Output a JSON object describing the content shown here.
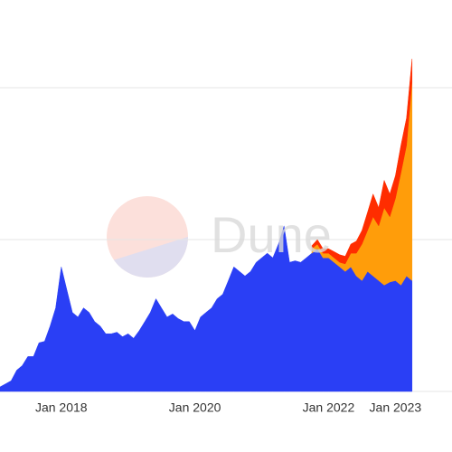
{
  "chart_data": {
    "type": "stacked-area",
    "watermark": "Dune",
    "x": [
      "2017-02",
      "2017-03",
      "2017-04",
      "2017-05",
      "2017-06",
      "2017-07",
      "2017-08",
      "2017-09",
      "2017-10",
      "2017-11",
      "2017-12",
      "2018-01",
      "2018-02",
      "2018-03",
      "2018-04",
      "2018-05",
      "2018-06",
      "2018-07",
      "2018-08",
      "2018-09",
      "2018-10",
      "2018-11",
      "2018-12",
      "2019-01",
      "2019-02",
      "2019-03",
      "2019-04",
      "2019-05",
      "2019-06",
      "2019-07",
      "2019-08",
      "2019-09",
      "2019-10",
      "2019-11",
      "2019-12",
      "2020-01",
      "2020-02",
      "2020-03",
      "2020-04",
      "2020-05",
      "2020-06",
      "2020-07",
      "2020-08",
      "2020-09",
      "2020-10",
      "2020-11",
      "2020-12",
      "2021-01",
      "2021-02",
      "2021-03",
      "2021-04",
      "2021-05",
      "2021-06",
      "2021-07",
      "2021-08",
      "2021-09",
      "2021-10",
      "2021-11",
      "2021-12",
      "2022-01",
      "2022-02",
      "2022-03",
      "2022-04",
      "2022-05",
      "2022-06",
      "2022-07",
      "2022-08",
      "2022-09",
      "2022-10",
      "2022-11",
      "2022-12",
      "2023-01",
      "2023-02",
      "2023-03",
      "2023-04"
    ],
    "series": [
      {
        "color": "#2a3ff5",
        "values": [
          0.03,
          0.05,
          0.07,
          0.14,
          0.17,
          0.23,
          0.23,
          0.32,
          0.33,
          0.43,
          0.55,
          0.82,
          0.67,
          0.52,
          0.49,
          0.55,
          0.52,
          0.46,
          0.43,
          0.38,
          0.38,
          0.39,
          0.36,
          0.38,
          0.35,
          0.4,
          0.46,
          0.52,
          0.61,
          0.55,
          0.49,
          0.51,
          0.48,
          0.46,
          0.46,
          0.4,
          0.49,
          0.52,
          0.55,
          0.61,
          0.64,
          0.73,
          0.82,
          0.79,
          0.76,
          0.79,
          0.85,
          0.88,
          0.91,
          0.88,
          0.97,
          1.09,
          0.85,
          0.86,
          0.85,
          0.88,
          0.91,
          0.94,
          0.88,
          0.88,
          0.85,
          0.82,
          0.79,
          0.82,
          0.76,
          0.73,
          0.79,
          0.76,
          0.73,
          0.7,
          0.72,
          0.73,
          0.7,
          0.76,
          0.73
        ]
      },
      {
        "color": "#ff9d0a",
        "values": [
          null,
          null,
          null,
          null,
          null,
          null,
          null,
          null,
          null,
          null,
          null,
          null,
          null,
          null,
          null,
          null,
          null,
          null,
          null,
          null,
          null,
          null,
          null,
          null,
          null,
          null,
          null,
          null,
          null,
          null,
          null,
          null,
          null,
          null,
          null,
          null,
          null,
          null,
          null,
          null,
          null,
          null,
          null,
          null,
          null,
          null,
          null,
          null,
          null,
          null,
          null,
          null,
          null,
          null,
          null,
          null,
          0.03,
          0.03,
          0.03,
          0.03,
          0.03,
          0.03,
          0.05,
          0.09,
          0.15,
          0.24,
          0.27,
          0.39,
          0.36,
          0.51,
          0.43,
          0.54,
          0.74,
          0.86,
          1.31
        ]
      },
      {
        "color": "#ff2d00",
        "values": [
          null,
          null,
          null,
          null,
          null,
          null,
          null,
          null,
          null,
          null,
          null,
          null,
          null,
          null,
          null,
          null,
          null,
          null,
          null,
          null,
          null,
          null,
          null,
          null,
          null,
          null,
          null,
          null,
          null,
          null,
          null,
          null,
          null,
          null,
          null,
          null,
          null,
          null,
          null,
          null,
          null,
          null,
          null,
          null,
          null,
          null,
          null,
          null,
          null,
          null,
          null,
          null,
          null,
          null,
          null,
          null,
          0.02,
          0.03,
          0.03,
          0.03,
          0.04,
          0.05,
          0.05,
          0.06,
          0.08,
          0.09,
          0.12,
          0.15,
          0.12,
          0.18,
          0.15,
          0.15,
          0.18,
          0.18,
          0.15
        ]
      }
    ],
    "xlim": [
      "2017-02",
      "2023-05"
    ],
    "xticks": [
      {
        "value": "2018-01",
        "label": "Jan 2018"
      },
      {
        "value": "2020-01",
        "label": "Jan 2020"
      },
      {
        "value": "2022-01",
        "label": "Jan 2022"
      },
      {
        "value": "2023-01",
        "label": "Jan 2023"
      }
    ],
    "ylim": [
      0,
      2.5
    ],
    "yticks": [
      0,
      1,
      2
    ],
    "grid": true
  }
}
